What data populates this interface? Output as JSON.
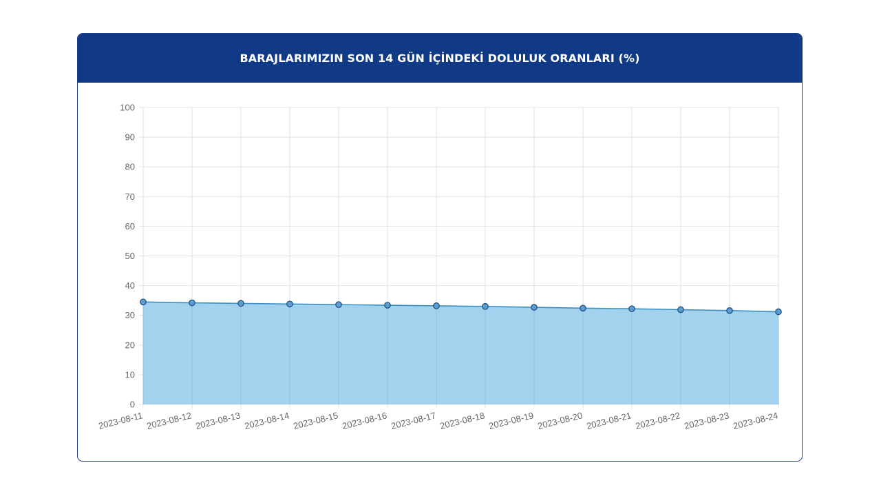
{
  "header": {
    "title": "BARAJLARIMIZIN SON 14 GÜN İÇİNDEKİ DOLULUK ORANLARI (%)"
  },
  "colors": {
    "header_bg": "#103a86",
    "area_fill": "#9dd0ec",
    "line": "#3d8fc0",
    "marker_fill": "#5a9fd0",
    "marker_stroke": "#1f4f86",
    "grid": "#e2e2e2",
    "tick_text": "#666666"
  },
  "chart_data": {
    "type": "area",
    "title": "BARAJLARIMIZIN SON 14 GÜN İÇİNDEKİ DOLULUK ORANLARI (%)",
    "categories": [
      "2023-08-11",
      "2023-08-12",
      "2023-08-13",
      "2023-08-14",
      "2023-08-15",
      "2023-08-16",
      "2023-08-17",
      "2023-08-18",
      "2023-08-19",
      "2023-08-20",
      "2023-08-21",
      "2023-08-22",
      "2023-08-23",
      "2023-08-24"
    ],
    "values": [
      34.5,
      34.2,
      34.0,
      33.8,
      33.6,
      33.4,
      33.2,
      33.0,
      32.7,
      32.4,
      32.2,
      31.9,
      31.6,
      31.2
    ],
    "ylim": [
      0,
      100
    ],
    "yticks": [
      0,
      10,
      20,
      30,
      40,
      50,
      60,
      70,
      80,
      90,
      100
    ],
    "grid": true,
    "legend": "none",
    "xlabel": "",
    "ylabel": ""
  }
}
